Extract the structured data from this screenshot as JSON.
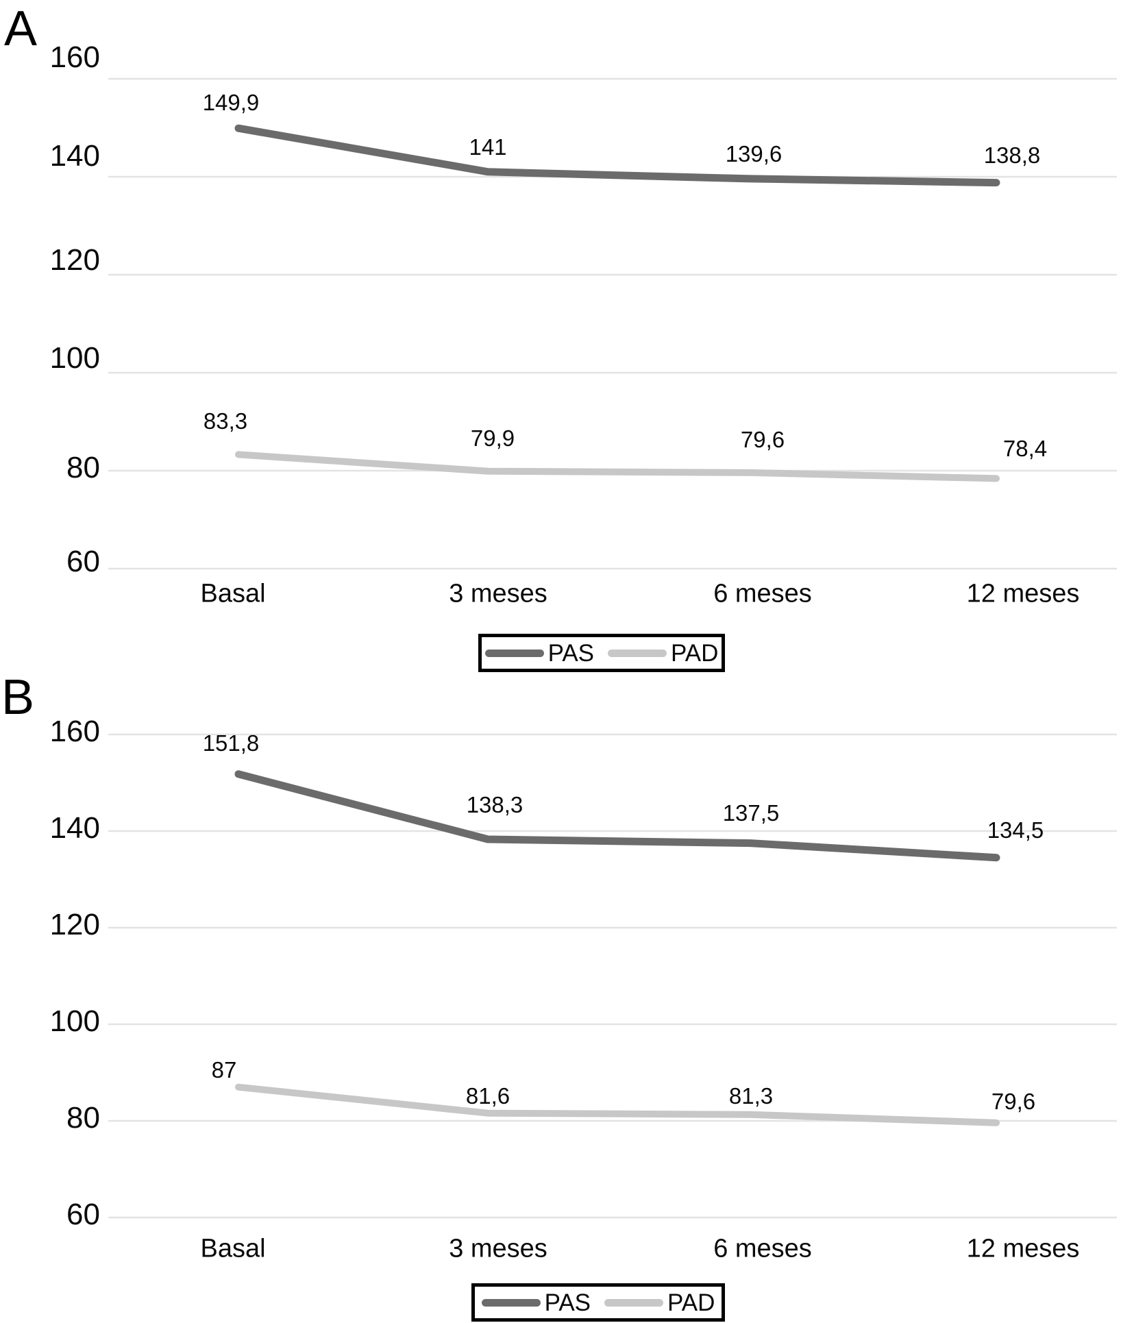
{
  "panels": [
    {
      "label": "A"
    },
    {
      "label": "B"
    }
  ],
  "legend": {
    "series": [
      "PAS",
      "PAD"
    ]
  },
  "colors": {
    "pas": "#6b6b6b",
    "pad": "#c7c7c7",
    "gridline": "#e3e3e3",
    "text": "#0a0a0a"
  },
  "chart_data": [
    {
      "type": "line",
      "panel": "A",
      "title": "",
      "categories": [
        "Basal",
        "3 meses",
        "6 meses",
        "12 meses"
      ],
      "yticks": [
        160,
        140,
        120,
        100,
        80,
        60
      ],
      "ylim": [
        60,
        165
      ],
      "grid": true,
      "legend_position": "bottom-center",
      "series": [
        {
          "name": "PAS",
          "values": [
            149.9,
            141,
            139.6,
            138.8
          ],
          "point_labels": [
            "149,9",
            "141",
            "139,6",
            "138,8"
          ],
          "color": "#6b6b6b"
        },
        {
          "name": "PAD",
          "values": [
            83.3,
            79.9,
            79.6,
            78.4
          ],
          "point_labels": [
            "83,3",
            "79,9",
            "79,6",
            "78,4"
          ],
          "color": "#c7c7c7"
        }
      ]
    },
    {
      "type": "line",
      "panel": "B",
      "title": "",
      "categories": [
        "Basal",
        "3 meses",
        "6 meses",
        "12 meses"
      ],
      "yticks": [
        160,
        140,
        120,
        100,
        80,
        60
      ],
      "ylim": [
        60,
        165
      ],
      "grid": true,
      "legend_position": "bottom-center",
      "series": [
        {
          "name": "PAS",
          "values": [
            151.8,
            138.3,
            137.5,
            134.5
          ],
          "point_labels": [
            "151,8",
            "138,3",
            "137,5",
            "134,5"
          ],
          "color": "#6b6b6b"
        },
        {
          "name": "PAD",
          "values": [
            87,
            81.6,
            81.3,
            79.6
          ],
          "point_labels": [
            "87",
            "81,6",
            "81,3",
            "79,6"
          ],
          "color": "#c7c7c7"
        }
      ]
    }
  ]
}
